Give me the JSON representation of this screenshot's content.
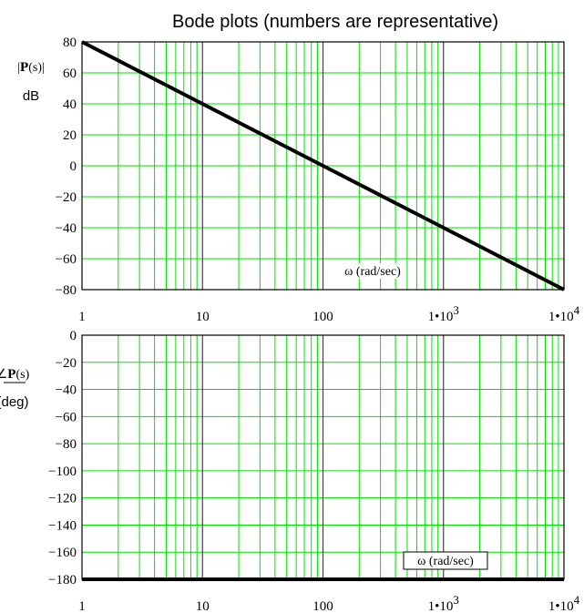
{
  "title": "Bode plots (numbers are representative)",
  "colors": {
    "grid_minor": "#00e000",
    "grid_decade": "#404040",
    "trace": "#000000",
    "frame": "#000000"
  },
  "chart_data": [
    {
      "type": "line",
      "name": "magnitude",
      "x_scale": "log",
      "xlim": [
        1,
        10000
      ],
      "ylim": [
        -80,
        80
      ],
      "x_ticks": [
        {
          "value": 1,
          "label": "1",
          "sup": ""
        },
        {
          "value": 10,
          "label": "10",
          "sup": ""
        },
        {
          "value": 100,
          "label": "100",
          "sup": ""
        },
        {
          "value": 1000,
          "label": "1•10",
          "sup": "3"
        },
        {
          "value": 10000,
          "label": "1•10",
          "sup": "4"
        }
      ],
      "y_ticks": [
        80,
        60,
        40,
        20,
        0,
        -20,
        -40,
        -60,
        -80
      ],
      "ylabel_top": "|P(s)|",
      "ylabel_bottom": "dB",
      "xlabel": "ω (rad/sec)",
      "grid": true,
      "series": [
        {
          "x": [
            1,
            10,
            100,
            1000,
            10000
          ],
          "y": [
            80,
            40,
            0,
            -40,
            -80
          ]
        }
      ]
    },
    {
      "type": "line",
      "name": "phase",
      "x_scale": "log",
      "xlim": [
        1,
        10000
      ],
      "ylim": [
        -180,
        0
      ],
      "x_ticks": [
        {
          "value": 1,
          "label": "1",
          "sup": ""
        },
        {
          "value": 10,
          "label": "10",
          "sup": ""
        },
        {
          "value": 100,
          "label": "100",
          "sup": ""
        },
        {
          "value": 1000,
          "label": "1•10",
          "sup": "3"
        },
        {
          "value": 10000,
          "label": "1•10",
          "sup": "4"
        }
      ],
      "y_ticks": [
        0,
        -20,
        -40,
        -60,
        -80,
        -100,
        -120,
        -140,
        -160,
        -180
      ],
      "ylabel_top": "∠P(s)",
      "ylabel_bottom": "(deg)",
      "xlabel": "ω (rad/sec)",
      "grid": true,
      "series": [
        {
          "x": [
            1,
            10000
          ],
          "y": [
            -180,
            -180
          ]
        }
      ]
    }
  ]
}
